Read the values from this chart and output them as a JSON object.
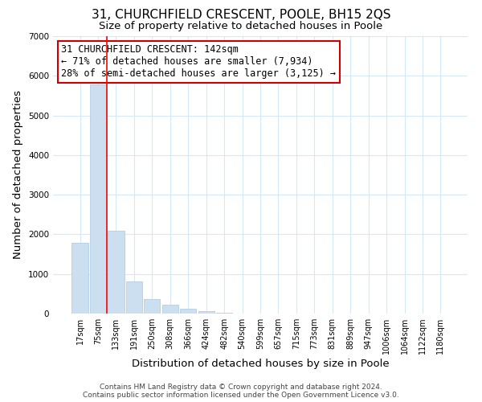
{
  "title": "31, CHURCHFIELD CRESCENT, POOLE, BH15 2QS",
  "subtitle": "Size of property relative to detached houses in Poole",
  "xlabel": "Distribution of detached houses by size in Poole",
  "ylabel": "Number of detached properties",
  "bar_labels": [
    "17sqm",
    "75sqm",
    "133sqm",
    "191sqm",
    "250sqm",
    "308sqm",
    "366sqm",
    "424sqm",
    "482sqm",
    "540sqm",
    "599sqm",
    "657sqm",
    "715sqm",
    "773sqm",
    "831sqm",
    "889sqm",
    "947sqm",
    "1006sqm",
    "1064sqm",
    "1122sqm",
    "1180sqm"
  ],
  "bar_values": [
    1780,
    5780,
    2080,
    820,
    370,
    230,
    120,
    60,
    30,
    10,
    5,
    0,
    0,
    0,
    0,
    0,
    0,
    0,
    0,
    0,
    0
  ],
  "bar_color": "#ccdff0",
  "bar_edge_color": "#aac8e0",
  "red_line_x": 1.5,
  "annotation_title": "31 CHURCHFIELD CRESCENT: 142sqm",
  "annotation_line1": "← 71% of detached houses are smaller (7,934)",
  "annotation_line2": "28% of semi-detached houses are larger (3,125) →",
  "annotation_box_facecolor": "#ffffff",
  "annotation_box_edgecolor": "#cc0000",
  "ylim": [
    0,
    7000
  ],
  "yticks": [
    0,
    1000,
    2000,
    3000,
    4000,
    5000,
    6000,
    7000
  ],
  "grid_color": "#d5e8f5",
  "title_fontsize": 11,
  "subtitle_fontsize": 9.5,
  "axis_label_fontsize": 9.5,
  "tick_fontsize": 7,
  "annotation_fontsize": 8.5,
  "footer_fontsize": 6.5,
  "footer_line1": "Contains HM Land Registry data © Crown copyright and database right 2024.",
  "footer_line2": "Contains public sector information licensed under the Open Government Licence v3.0."
}
